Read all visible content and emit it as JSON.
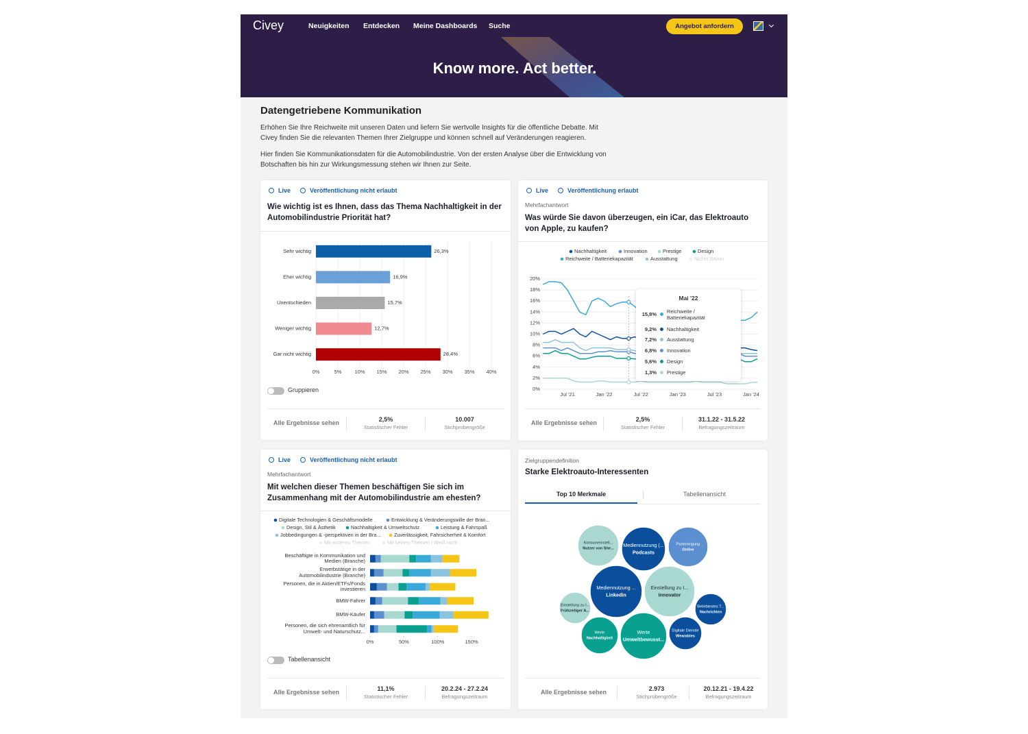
{
  "nav": {
    "logo": "Civey",
    "links": [
      "Neuigkeiten",
      "Entdecken",
      "Meine Dashboards",
      "Suche"
    ],
    "cta": "Angebot anfordern"
  },
  "hero": {
    "title": "Know more. Act better."
  },
  "intro": {
    "title": "Datengetriebene Kommunikation",
    "paragraphs": [
      "Erhöhen Sie Ihre Reichweite mit unseren Daten und liefern Sie wertvolle Insights für die öffentliche Debatte. Mit Civey finden Sie die relevanten Themen Ihrer Zielgruppe und können schnell auf Veränderungen reagieren.",
      "Hier finden Sie Kommunikationsdaten für die Automobilindustrie. Von der ersten Analyse über die Entwicklung von Botschaften bis hin zur Wirkungsmessung stehen wir Ihnen zur Seite."
    ]
  },
  "cards": [
    {
      "badges": [
        "Live",
        "Veröffentlichung nicht erlaubt"
      ],
      "question": "Wie wichtig ist es Ihnen, dass das Thema Nachhaltigkeit in der Automobilindustrie Priorität hat?",
      "toggle": "Gruppieren",
      "footer": {
        "link": "Alle Ergebnisse sehen",
        "stats": [
          {
            "value": "2,5%",
            "label": "Statistischer Fehler"
          },
          {
            "value": "10.007",
            "label": "Stichprobengröße"
          }
        ]
      }
    },
    {
      "badges": [
        "Live",
        "Veröffentlichung erlaubt"
      ],
      "kind": "Mehrfachantwort",
      "question": "Was würde Sie davon überzeugen, ein iCar, das Elektroauto von Apple, zu kaufen?",
      "footer": {
        "link": "Alle Ergebnisse sehen",
        "stats": [
          {
            "value": "2,5%",
            "label": "Statistischer Fehler"
          },
          {
            "value": "31.1.22 - 31.5.22",
            "label": "Befragungszeitraum"
          }
        ]
      }
    },
    {
      "badges": [
        "Live",
        "Veröffentlichung nicht erlaubt"
      ],
      "kind": "Mehrfachantwort",
      "question": "Mit welchen dieser Themen beschäftigen Sie sich im Zusammenhang mit der Automobilindustrie am ehesten?",
      "toggle": "Tabellenansicht",
      "footer": {
        "link": "Alle Ergebnisse sehen",
        "stats": [
          {
            "value": "11,1%",
            "label": "Statistischer Fehler"
          },
          {
            "value": "20.2.24 - 27.2.24",
            "label": "Befragungszeitraum"
          }
        ]
      }
    },
    {
      "kind": "Zielgruppendefinition",
      "question": "Starke Elektroauto-Interessenten",
      "tabs": [
        "Top 10 Merkmale",
        "Tabellenansicht"
      ],
      "footer": {
        "link": "Alle Ergebnisse sehen",
        "stats": [
          {
            "value": "2.973",
            "label": "Stichprobengröße"
          },
          {
            "value": "20.12.21 - 19.4.22",
            "label": "Befragungszeitraum"
          }
        ]
      }
    }
  ],
  "chart_data": [
    {
      "type": "hbar",
      "categories": [
        "Sehr wichtig",
        "Eher wichtig",
        "Unentschieden",
        "Weniger wichtig",
        "Gar nicht wichtig"
      ],
      "values": [
        26.3,
        16.9,
        15.7,
        12.7,
        28.4
      ],
      "value_labels": [
        "26,3%",
        "16,9%",
        "15,7%",
        "12,7%",
        "28,4%"
      ],
      "colors": [
        "#0b5ea8",
        "#6a9fd8",
        "#aaaaaa",
        "#f08a90",
        "#b00000"
      ],
      "xlim": [
        0,
        40
      ],
      "xticks": [
        {
          "value": 0,
          "label": "0%"
        },
        {
          "value": 5,
          "label": "5%"
        },
        {
          "value": 10,
          "label": "10%"
        },
        {
          "value": 15,
          "label": "15%"
        },
        {
          "value": 20,
          "label": "20%"
        },
        {
          "value": 25,
          "label": "25%"
        },
        {
          "value": 30,
          "label": "30%"
        },
        {
          "value": 35,
          "label": "35%"
        },
        {
          "value": 40,
          "label": "40%"
        }
      ],
      "grid": true
    },
    {
      "type": "line",
      "categories": [
        null,
        null,
        null,
        null,
        "Jul '21",
        null,
        null,
        null,
        null,
        null,
        "Jan '22",
        null,
        null,
        null,
        null,
        null,
        "Jul '22",
        null,
        null,
        null,
        null,
        null,
        "Jan '23",
        null,
        null,
        null,
        null,
        null,
        "Jul '23",
        null,
        null,
        null,
        null,
        null,
        "Jan '24",
        null
      ],
      "series": [
        {
          "name": "Nachhaltigkeit",
          "color": "#0b4f9c",
          "values": [
            10,
            10.5,
            10.5,
            10,
            10.5,
            11,
            10,
            9.5,
            10.5,
            10,
            9.5,
            9,
            9.5,
            9.2,
            9.2,
            9.5,
            9,
            8.5,
            8,
            8,
            8,
            7.5,
            7.5,
            7.5,
            7.5,
            7.5,
            7.5,
            7.5,
            7.5,
            7.5,
            7.5,
            7.5,
            7.5,
            7.5,
            7.2,
            7
          ]
        },
        {
          "name": "Innovation",
          "color": "#5b8fd0",
          "values": [
            7.5,
            7.5,
            7.5,
            7,
            7.5,
            7,
            6.5,
            6.5,
            6.5,
            6.8,
            6.8,
            7,
            6.8,
            6.8,
            6.8,
            6.5,
            6.5,
            6.5,
            6.5,
            6.5,
            6.5,
            6.5,
            6.5,
            6.5,
            6.5,
            6.5,
            6.5,
            6.5,
            6.5,
            6.5,
            6.5,
            6.5,
            6.5,
            6,
            6,
            6
          ]
        },
        {
          "name": "Prestige",
          "color": "#a8d8d0",
          "values": [
            2,
            2,
            2,
            2,
            2,
            1.5,
            1.3,
            1.3,
            1.3,
            1.5,
            1.5,
            1.3,
            1.3,
            1.3,
            1.3,
            1.3,
            1.5,
            1.3,
            1.3,
            1.3,
            1.3,
            1.3,
            1.3,
            1.3,
            1.3,
            1.5,
            1.3,
            1.3,
            1.3,
            1.3,
            1,
            1,
            1,
            1,
            1.2,
            1.3
          ]
        },
        {
          "name": "Design",
          "color": "#0aa090",
          "values": [
            6.5,
            6.5,
            7,
            6.5,
            6.5,
            6,
            5.5,
            5.5,
            5.8,
            6,
            6,
            6,
            5.6,
            5.6,
            5.6,
            5.5,
            5.5,
            5.5,
            5.5,
            5.5,
            5.5,
            5.5,
            5.5,
            5.5,
            5.5,
            5.5,
            5.5,
            5.5,
            5.5,
            5.5,
            5.5,
            5.5,
            5.5,
            5,
            5,
            5.5
          ]
        },
        {
          "name": "Reichweite / Batteriekapazität",
          "color": "#3aa8d8",
          "values": [
            19,
            19.5,
            19.5,
            19.3,
            18,
            16,
            14,
            13.5,
            16,
            16.5,
            16,
            15,
            15.5,
            15.8,
            15.8,
            15,
            14,
            13.5,
            14,
            14.5,
            15,
            14,
            13.5,
            13,
            12.5,
            12.5,
            12.5,
            13,
            12.5,
            12.5,
            12.5,
            13,
            12.5,
            12.5,
            13,
            14
          ]
        },
        {
          "name": "Ausstattung",
          "color": "#8cc4e0",
          "values": [
            8.5,
            8.5,
            9,
            8.5,
            8.5,
            8.5,
            7.5,
            7,
            7.5,
            7.5,
            7.5,
            7.5,
            7.2,
            7.2,
            7.2,
            7,
            6.5,
            6.5,
            6.5,
            6.5,
            6.5,
            6.5,
            6.5,
            6.5,
            6.5,
            6.5,
            6.5,
            6.5,
            6.5,
            6.5,
            6.5,
            6.5,
            6.5,
            6.5,
            6.5,
            6.5
          ]
        }
      ],
      "inactive_series": [
        "Nichts davon"
      ],
      "ylim": [
        0,
        20
      ],
      "yticks": [
        {
          "value": 0,
          "label": "0%"
        },
        {
          "value": 2,
          "label": "2%"
        },
        {
          "value": 4,
          "label": "4%"
        },
        {
          "value": 6,
          "label": "6%"
        },
        {
          "value": 8,
          "label": "8%"
        },
        {
          "value": 10,
          "label": "10%"
        },
        {
          "value": 12,
          "label": "12%"
        },
        {
          "value": 14,
          "label": "14%"
        },
        {
          "value": 16,
          "label": "16%"
        },
        {
          "value": 18,
          "label": "18%"
        },
        {
          "value": 20,
          "label": "20%"
        }
      ],
      "grid": true,
      "tooltip": {
        "title": "Mai '22",
        "names": [
          "Reichweite / Batteriekapazität",
          "Nachhaltigkeit",
          "Ausstattung",
          "Innovation",
          "Design",
          "Prestige"
        ],
        "values": [
          15.8,
          9.2,
          7.2,
          6.8,
          5.6,
          1.3
        ],
        "value_labels": [
          "15,8%",
          "9,2%",
          "7,2%",
          "6,8%",
          "5,6%",
          "1,3%"
        ],
        "colors": [
          "#3aa8d8",
          "#0b4f9c",
          "#8cc4e0",
          "#5b8fd0",
          "#0aa090",
          "#a8d8d0"
        ]
      }
    },
    {
      "type": "stacked-hbar",
      "categories": [
        "Beschäftigte in Kommunikation und Medien (Branche)",
        "Erwerbstätige in der Automobilindustrie (Branche)",
        "Personen, die in Aktien/ETFs/Fonds investieren",
        "BMW-Fahrer",
        "BMW-Käufer",
        "Personen, die sich ehrenamtlich für Umwelt- und Naturschutz..."
      ],
      "series": [
        {
          "name": "Digitale Technologien & Geschäftsmodelle",
          "color": "#0b4f9c",
          "values": [
            8,
            6,
            10,
            8,
            6,
            6
          ]
        },
        {
          "name": "Entwicklung & Veränderungswille der Bran...",
          "color": "#5b8fd0",
          "values": [
            8,
            14,
            15,
            10,
            15,
            6
          ]
        },
        {
          "name": "Design, Stil & Ästhetik",
          "color": "#a8d8d0",
          "values": [
            42,
            28,
            17,
            38,
            30,
            27
          ]
        },
        {
          "name": "Nachhaltigkeit & Umweltschutz",
          "color": "#0aa090",
          "values": [
            10,
            10,
            12,
            16,
            12,
            45
          ]
        },
        {
          "name": "Leistung & Fahrspaß",
          "color": "#3aa8d8",
          "values": [
            22,
            32,
            28,
            32,
            40,
            7
          ]
        },
        {
          "name": "Jobbedingungen & -perspektiven in der Bra...",
          "color": "#8cc4e0",
          "values": [
            17,
            28,
            6,
            10,
            20,
            3
          ]
        },
        {
          "name": "Zuverlässigkeit, Fahrsicherheit & Komfort",
          "color": "#f5c518",
          "values": [
            25,
            39,
            38,
            39,
            52,
            36
          ]
        }
      ],
      "inactive_series": [
        "Mit anderen Themen",
        "Mit keinen Themen / Weiß nicht"
      ],
      "xlim": [
        0,
        180
      ],
      "xticks": [
        {
          "value": 0,
          "label": "0%"
        },
        {
          "value": 50,
          "label": "50%"
        },
        {
          "value": 100,
          "label": "100%"
        },
        {
          "value": 150,
          "label": "150%"
        }
      ]
    },
    {
      "type": "bubble",
      "labels": [
        "Konsumeinstell...",
        "Mediennutzung (...",
        "Parteineigung",
        "Mediennutzung ...",
        "Einstellung zu I...",
        "Einstellung zu I...",
        "Beliebtestes T...",
        "Werte",
        "Werte",
        "Digitale Dienste"
      ],
      "sublabels": [
        "Nutzer von She...",
        "Podcasts",
        "Online",
        "Linkedin",
        "Innovator",
        "Frühzeitiger A...",
        "Nachrichten",
        "Nachhaltigkeit",
        "Umweltbewusst...",
        "Wearables"
      ],
      "values": [
        30,
        32,
        29,
        38,
        37,
        23,
        23,
        27,
        34,
        24
      ],
      "colors": [
        "#a8d8d0",
        "#0b4f9c",
        "#5b8fd0",
        "#0b4f9c",
        "#a8d8d0",
        "#a8d8d0",
        "#0b4f9c",
        "#0aa090",
        "#0aa090",
        "#0b4f9c"
      ]
    }
  ]
}
